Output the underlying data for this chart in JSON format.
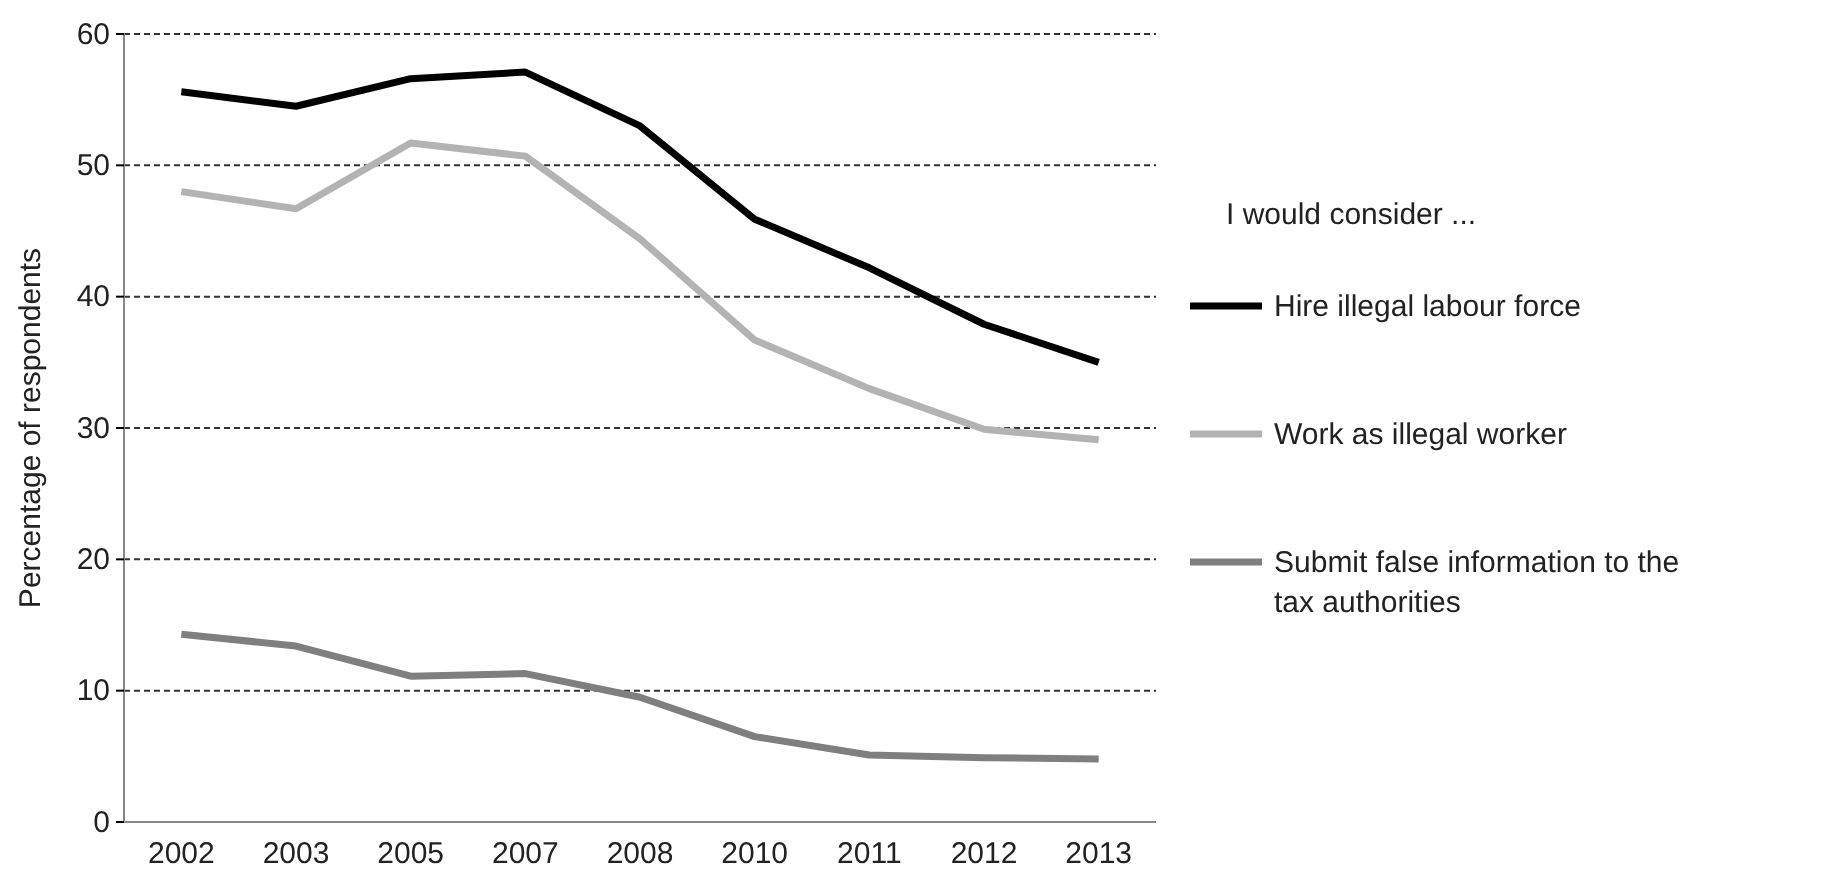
{
  "chart_data": {
    "type": "line",
    "ylabel": "Percentage of respondents",
    "legend_title": "I would consider ...",
    "categories": [
      "2002",
      "2003",
      "2005",
      "2007",
      "2008",
      "2010",
      "2011",
      "2012",
      "2013"
    ],
    "series": [
      {
        "name": "Hire illegal labour force",
        "color": "#000000",
        "values": [
          55.6,
          54.5,
          56.6,
          57.1,
          53,
          45.9,
          42.2,
          37.9,
          35
        ]
      },
      {
        "name": "Work as illegal worker",
        "color": "#b3b3b3",
        "values": [
          48,
          46.7,
          51.7,
          50.7,
          44.4,
          36.7,
          33,
          29.9,
          29.1
        ]
      },
      {
        "name": "Submit false information to the tax authorities",
        "color": "#7f7f7f",
        "values": [
          14.3,
          13.4,
          11.1,
          11.3,
          9.5,
          6.5,
          5.1,
          4.9,
          4.8
        ]
      }
    ],
    "ylim": [
      0,
      60
    ],
    "yticks": [
      0,
      10,
      20,
      30,
      40,
      50,
      60
    ],
    "grid": "y",
    "legend": "right",
    "marker": "none",
    "line_style": "solid"
  }
}
